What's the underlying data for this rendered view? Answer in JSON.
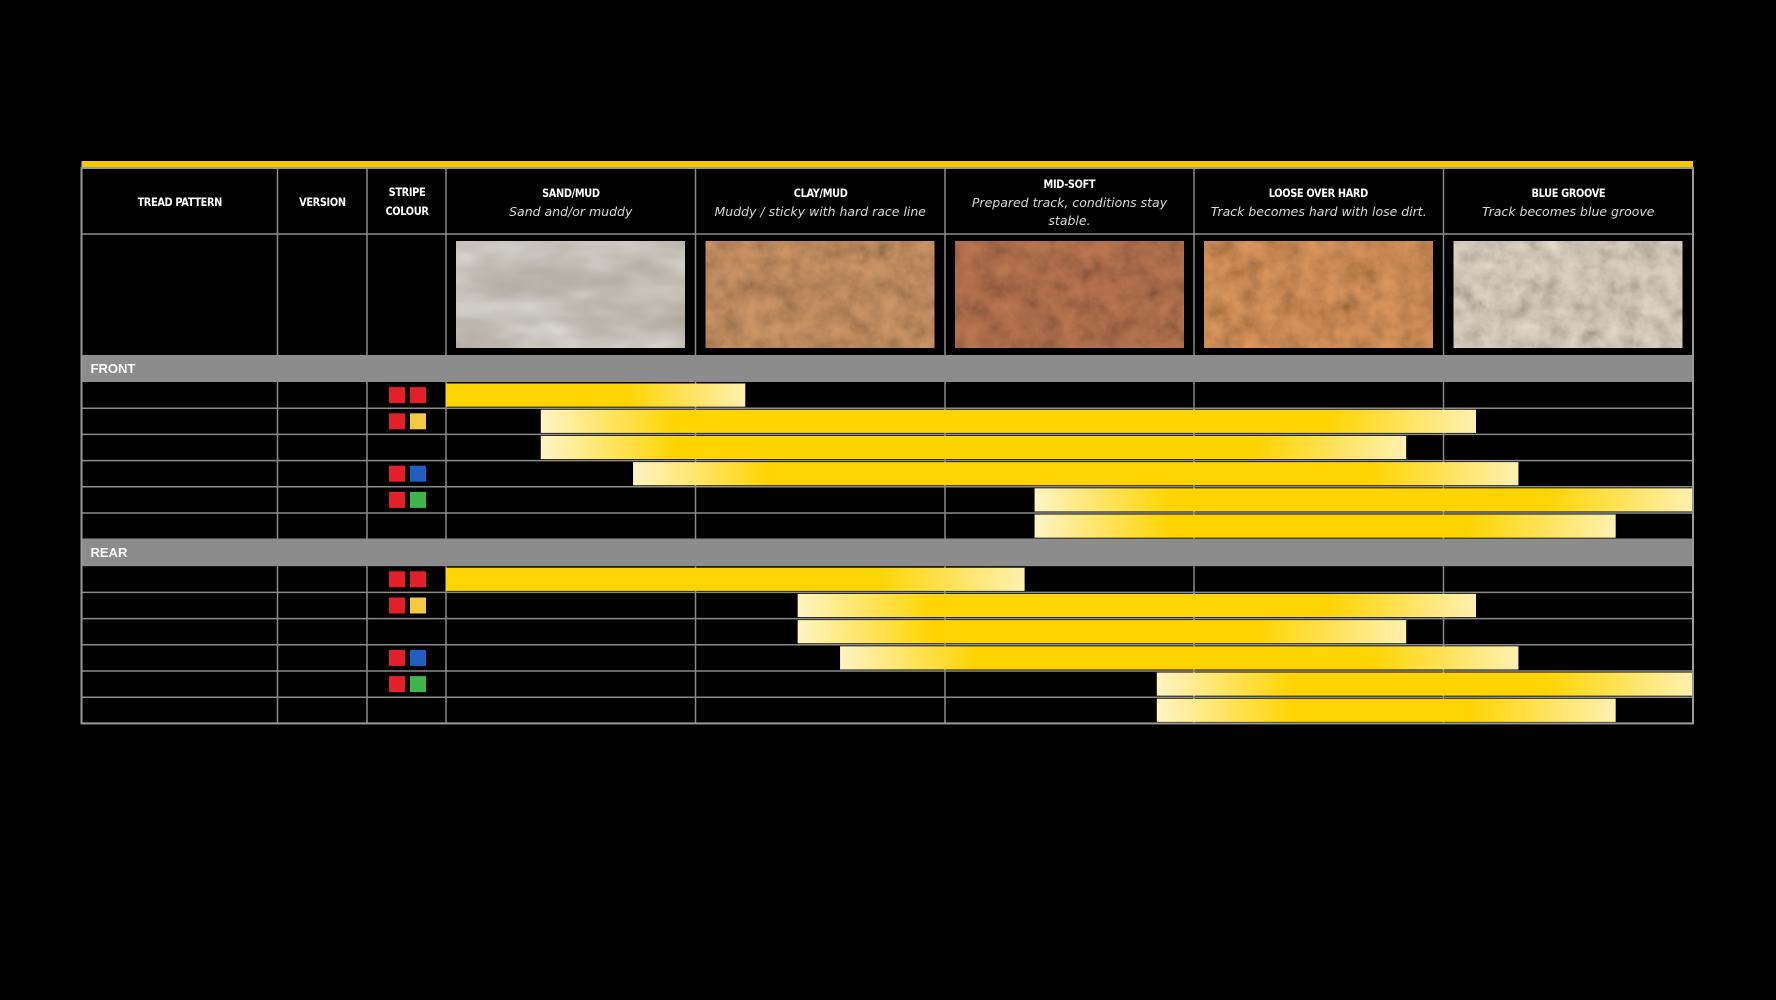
{
  "header": {
    "columns": [
      {
        "title": "TREAD PATTERN"
      },
      {
        "title": "VERSION"
      },
      {
        "title": "STRIPE COLOUR"
      },
      {
        "title": "SAND/MUD",
        "subtitle": "Sand and/or muddy"
      },
      {
        "title": "CLAY/MUD",
        "subtitle": "Muddy / sticky with hard race line"
      },
      {
        "title": "MID-SOFT",
        "subtitle": "Prepared track, conditions stay stable."
      },
      {
        "title": "LOOSE OVER HARD",
        "subtitle": "Track becomes hard with lose dirt."
      },
      {
        "title": "BLUE GROOVE",
        "subtitle": "Track becomes blue groove"
      }
    ]
  },
  "bar_color": "#ffd400",
  "sections": [
    {
      "label": "FRONT",
      "rows": [
        {
          "stripe": [
            "#e3202a",
            "#e3202a"
          ],
          "range": [
            0,
            1.2
          ]
        },
        {
          "stripe": [
            "#e3202a",
            "#f5c842"
          ],
          "range": [
            0.38,
            4.13
          ]
        },
        {
          "range": [
            0.38,
            3.85
          ]
        },
        {
          "stripe": [
            "#e3202a",
            "#1f5fbf"
          ],
          "range": [
            0.75,
            4.3
          ]
        },
        {
          "stripe": [
            "#e3202a",
            "#3cb54a"
          ],
          "range": [
            2.36,
            5
          ]
        },
        {
          "range": [
            2.36,
            4.69
          ]
        }
      ]
    },
    {
      "label": "REAR",
      "rows": [
        {
          "stripe": [
            "#e3202a",
            "#e3202a"
          ],
          "range": [
            0,
            2.32
          ]
        },
        {
          "stripe": [
            "#e3202a",
            "#f5c842"
          ],
          "range": [
            1.41,
            4.13
          ]
        },
        {
          "range": [
            1.41,
            3.85
          ]
        },
        {
          "stripe": [
            "#e3202a",
            "#1f5fbf"
          ],
          "range": [
            1.58,
            4.3
          ]
        },
        {
          "stripe": [
            "#e3202a",
            "#3cb54a"
          ],
          "range": [
            2.85,
            5
          ]
        },
        {
          "range": [
            2.85,
            4.69
          ]
        }
      ]
    }
  ]
}
